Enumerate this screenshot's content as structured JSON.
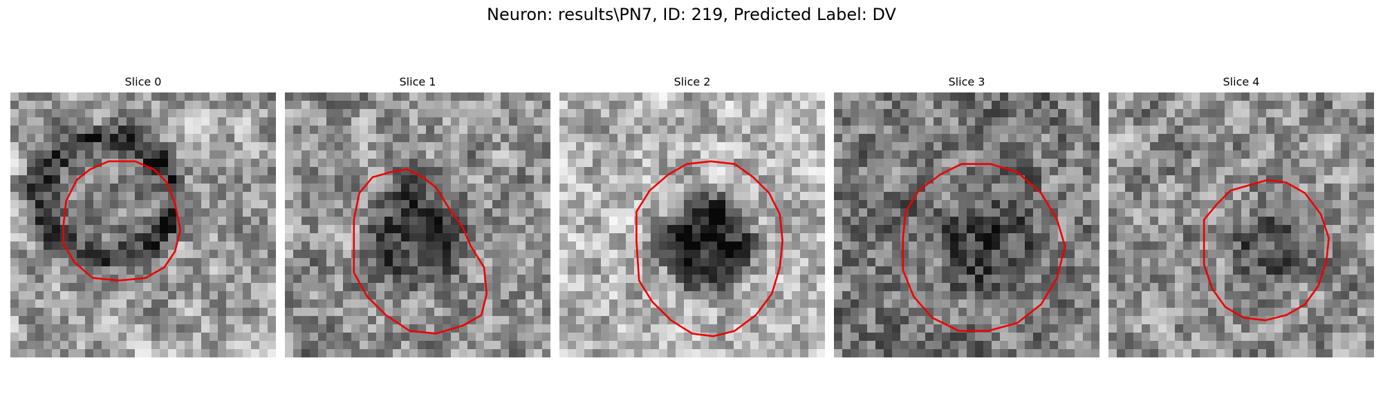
{
  "figure": {
    "title": "Neuron: results\\PN7, ID: 219, Predicted Label: DV"
  },
  "outline_color": "#ee0000",
  "panels": [
    {
      "title": "Slice 0",
      "seed": 11,
      "bg": 0.62,
      "dark": 0.42,
      "center": [
        0.36,
        0.4
      ],
      "radius": [
        0.48,
        0.44
      ],
      "ring": true,
      "contour": [
        [
          0.2,
          0.5
        ],
        [
          0.21,
          0.41
        ],
        [
          0.25,
          0.33
        ],
        [
          0.3,
          0.29
        ],
        [
          0.37,
          0.26
        ],
        [
          0.47,
          0.26
        ],
        [
          0.54,
          0.29
        ],
        [
          0.59,
          0.34
        ],
        [
          0.62,
          0.42
        ],
        [
          0.64,
          0.52
        ],
        [
          0.62,
          0.6
        ],
        [
          0.58,
          0.66
        ],
        [
          0.51,
          0.7
        ],
        [
          0.41,
          0.71
        ],
        [
          0.31,
          0.7
        ],
        [
          0.24,
          0.64
        ],
        [
          0.2,
          0.57
        ]
      ]
    },
    {
      "title": "Slice 1",
      "seed": 23,
      "bg": 0.58,
      "dark": 0.3,
      "center": [
        0.5,
        0.54
      ],
      "radius": [
        0.36,
        0.4
      ],
      "ring": false,
      "contour": [
        [
          0.26,
          0.48
        ],
        [
          0.28,
          0.38
        ],
        [
          0.33,
          0.32
        ],
        [
          0.4,
          0.3
        ],
        [
          0.46,
          0.29
        ],
        [
          0.52,
          0.32
        ],
        [
          0.57,
          0.36
        ],
        [
          0.62,
          0.44
        ],
        [
          0.67,
          0.51
        ],
        [
          0.7,
          0.58
        ],
        [
          0.75,
          0.66
        ],
        [
          0.76,
          0.76
        ],
        [
          0.74,
          0.84
        ],
        [
          0.67,
          0.88
        ],
        [
          0.57,
          0.91
        ],
        [
          0.47,
          0.9
        ],
        [
          0.38,
          0.84
        ],
        [
          0.31,
          0.77
        ],
        [
          0.26,
          0.68
        ]
      ]
    },
    {
      "title": "Slice 2",
      "seed": 37,
      "bg": 0.7,
      "dark": 0.55,
      "center": [
        0.56,
        0.57
      ],
      "radius": [
        0.32,
        0.36
      ],
      "ring": false,
      "contour": [
        [
          0.29,
          0.56
        ],
        [
          0.29,
          0.45
        ],
        [
          0.34,
          0.37
        ],
        [
          0.41,
          0.31
        ],
        [
          0.48,
          0.27
        ],
        [
          0.57,
          0.26
        ],
        [
          0.66,
          0.27
        ],
        [
          0.73,
          0.32
        ],
        [
          0.79,
          0.38
        ],
        [
          0.83,
          0.46
        ],
        [
          0.84,
          0.56
        ],
        [
          0.83,
          0.66
        ],
        [
          0.8,
          0.76
        ],
        [
          0.74,
          0.84
        ],
        [
          0.66,
          0.9
        ],
        [
          0.58,
          0.92
        ],
        [
          0.5,
          0.91
        ],
        [
          0.42,
          0.86
        ],
        [
          0.35,
          0.79
        ],
        [
          0.3,
          0.71
        ]
      ]
    },
    {
      "title": "Slice 3",
      "seed": 51,
      "bg": 0.48,
      "dark": 0.22,
      "center": [
        0.58,
        0.58
      ],
      "radius": [
        0.34,
        0.36
      ],
      "ring": false,
      "contour": [
        [
          0.26,
          0.55
        ],
        [
          0.27,
          0.45
        ],
        [
          0.32,
          0.37
        ],
        [
          0.4,
          0.31
        ],
        [
          0.48,
          0.27
        ],
        [
          0.59,
          0.27
        ],
        [
          0.69,
          0.3
        ],
        [
          0.78,
          0.38
        ],
        [
          0.84,
          0.48
        ],
        [
          0.87,
          0.58
        ],
        [
          0.84,
          0.7
        ],
        [
          0.78,
          0.8
        ],
        [
          0.69,
          0.87
        ],
        [
          0.58,
          0.9
        ],
        [
          0.47,
          0.9
        ],
        [
          0.37,
          0.85
        ],
        [
          0.3,
          0.77
        ],
        [
          0.26,
          0.67
        ]
      ]
    },
    {
      "title": "Slice 4",
      "seed": 73,
      "bg": 0.56,
      "dark": 0.25,
      "center": [
        0.6,
        0.6
      ],
      "radius": [
        0.25,
        0.28
      ],
      "ring": false,
      "contour": [
        [
          0.36,
          0.55
        ],
        [
          0.36,
          0.48
        ],
        [
          0.41,
          0.42
        ],
        [
          0.46,
          0.37
        ],
        [
          0.53,
          0.35
        ],
        [
          0.6,
          0.33
        ],
        [
          0.67,
          0.34
        ],
        [
          0.74,
          0.38
        ],
        [
          0.8,
          0.46
        ],
        [
          0.83,
          0.55
        ],
        [
          0.82,
          0.64
        ],
        [
          0.79,
          0.73
        ],
        [
          0.74,
          0.8
        ],
        [
          0.67,
          0.84
        ],
        [
          0.59,
          0.86
        ],
        [
          0.51,
          0.85
        ],
        [
          0.44,
          0.81
        ],
        [
          0.39,
          0.74
        ],
        [
          0.36,
          0.65
        ]
      ]
    }
  ]
}
